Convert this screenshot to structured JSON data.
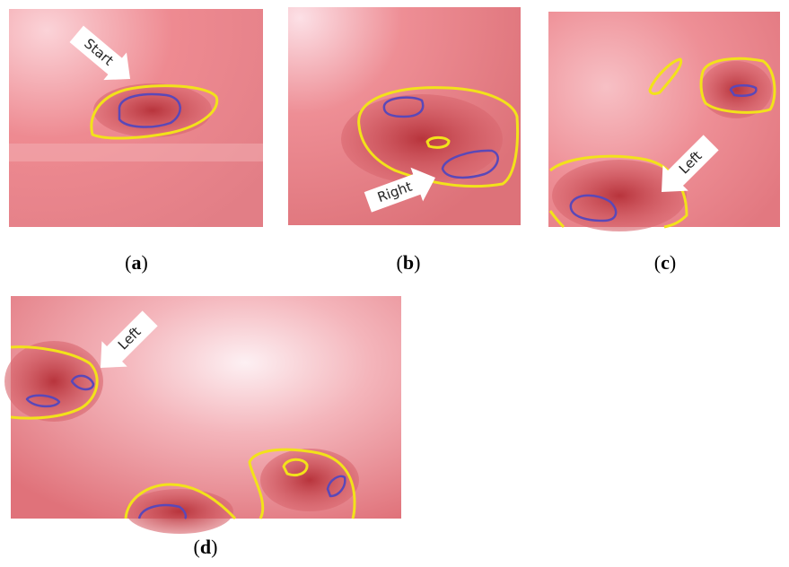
{
  "panels": [
    {
      "arrow_label": "Start",
      "caption": "(a)"
    },
    {
      "arrow_label": "Right",
      "caption": "(b)"
    },
    {
      "arrow_label": "Left",
      "caption": "(c)"
    },
    {
      "arrow_label": "Left",
      "caption": "(d)"
    }
  ]
}
